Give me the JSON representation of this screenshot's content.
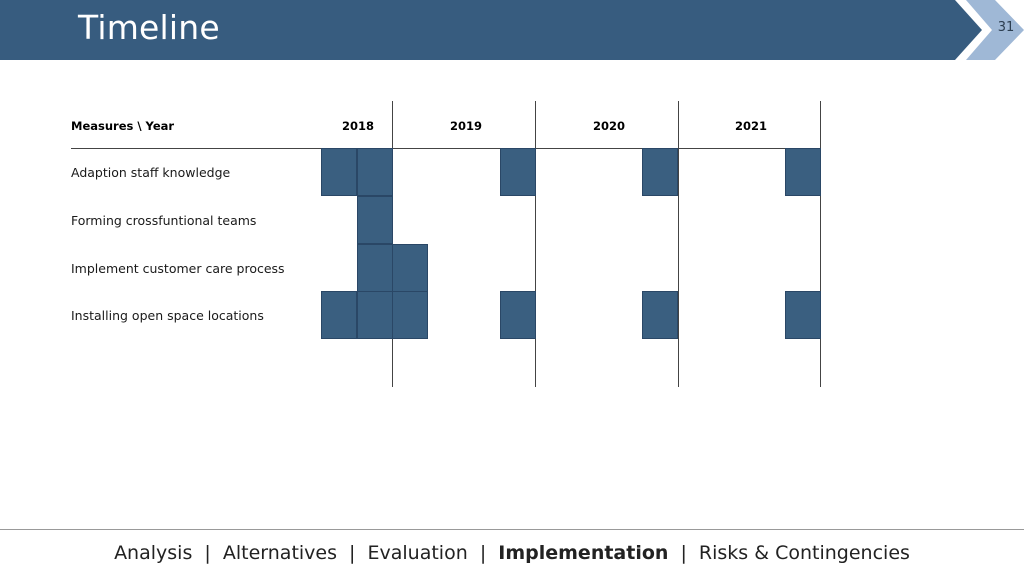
{
  "header": {
    "title": "Timeline",
    "page_number": "31",
    "color": "#375c7f",
    "arrow_color": "#9fb8d6"
  },
  "table": {
    "corner_header": "Measures \\ Year",
    "years": [
      "2018",
      "2019",
      "2020",
      "2021"
    ],
    "rows": [
      {
        "label": "Adaption staff knowledge"
      },
      {
        "label": "Forming crossfuntional teams"
      },
      {
        "label": "Implement customer care process"
      },
      {
        "label": "Installing open space locations"
      }
    ],
    "cell_color": "#3a5f80"
  },
  "footer": {
    "nav": [
      "Analysis",
      "Alternatives",
      "Evaluation",
      "Implementation",
      "Risks & Contingencies"
    ],
    "active": "Implementation",
    "separator": "|"
  }
}
